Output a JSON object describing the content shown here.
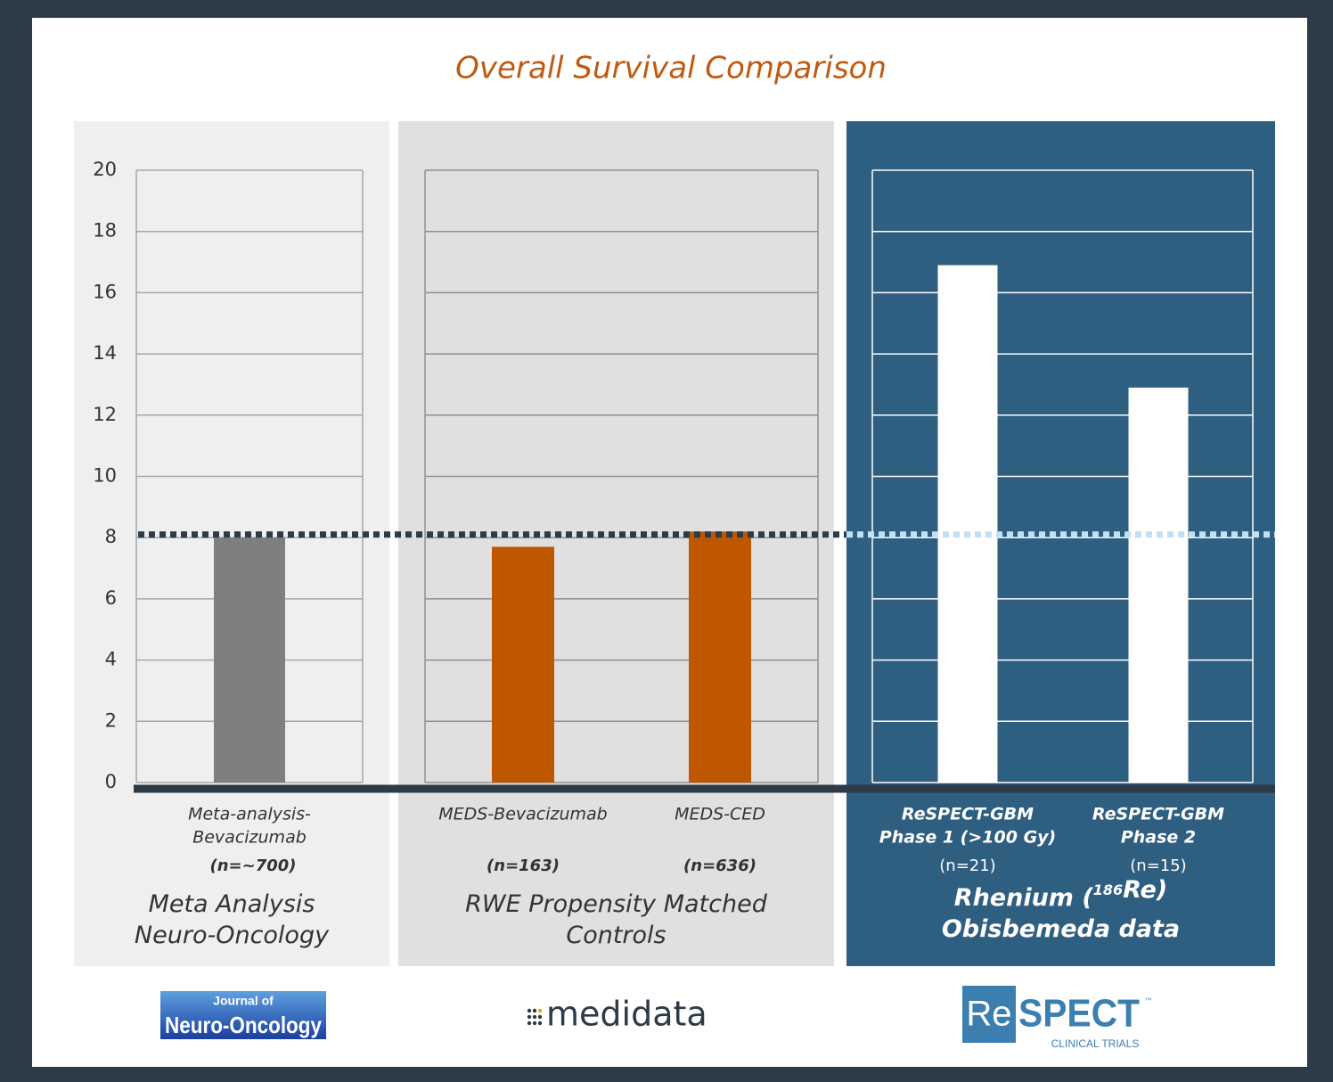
{
  "chart_data": {
    "type": "bar",
    "title": "Overall Survival Comparison",
    "ylim": [
      0,
      20
    ],
    "yticks": [
      0,
      2,
      4,
      6,
      8,
      10,
      12,
      14,
      16,
      18,
      20
    ],
    "grid": true,
    "reference_value": 8.1,
    "groups": [
      {
        "name_lines": [
          [
            "Meta Analysis"
          ],
          [
            "Neuro-Oncology"
          ]
        ],
        "color": "#7f7f7f",
        "categories": [
          [
            "Meta-analysis-",
            "Bevacizumab"
          ]
        ],
        "sample_sizes": [
          "(n=~700)"
        ],
        "values": [
          8.0
        ]
      },
      {
        "name_lines": [
          [
            "RWE Propensity Matched"
          ],
          [
            "Controls"
          ]
        ],
        "color": "#bf5700",
        "categories": [
          [
            "MEDS-Bevacizumab"
          ],
          [
            "MEDS-CED"
          ]
        ],
        "sample_sizes": [
          "(n=163)",
          "(n=636)"
        ],
        "values": [
          7.7,
          8.2
        ]
      },
      {
        "name_lines": [
          [
            "Rhenium (",
            {
              "text": "186",
              "superscript": true
            },
            "Re)"
          ],
          [
            "Obisbemeda data"
          ]
        ],
        "color": "#ffffff",
        "categories": [
          [
            "ReSPECT-GBM",
            "Phase 1 (>100 Gy)"
          ],
          [
            "ReSPECT-GBM",
            "Phase 2"
          ]
        ],
        "sample_sizes": [
          "(n=21)",
          "(n=15)"
        ],
        "values": [
          16.9,
          12.9
        ]
      }
    ]
  },
  "logos": {
    "journal_top": "Journal of",
    "journal_main": "Neuro-Oncology",
    "medidata": "medidata",
    "respect_re": "Re",
    "respect_spect": "SPECT",
    "respect_tm": "™",
    "respect_sub": "CLINICAL TRIALS"
  }
}
